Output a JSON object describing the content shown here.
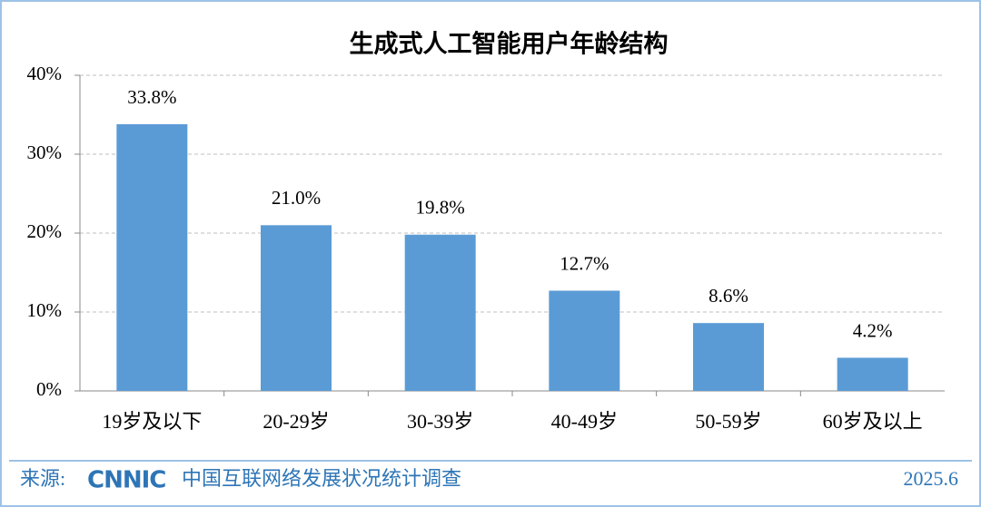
{
  "chart_data": {
    "type": "bar",
    "title": "生成式人工智能用户年龄结构",
    "categories": [
      "19岁及以下",
      "20-29岁",
      "30-39岁",
      "40-49岁",
      "50-59岁",
      "60岁及以上"
    ],
    "values": [
      33.8,
      21.0,
      19.8,
      12.7,
      8.6,
      4.2
    ],
    "value_labels": [
      "33.8%",
      "21.0%",
      "19.8%",
      "12.7%",
      "8.6%",
      "4.2%"
    ],
    "color": "#5b9bd5",
    "ylim": [
      0,
      40
    ],
    "yticks": [
      {
        "value": 0,
        "label": "0%"
      },
      {
        "value": 10,
        "label": "10%"
      },
      {
        "value": 20,
        "label": "20%"
      },
      {
        "value": 30,
        "label": "30%"
      },
      {
        "value": 40,
        "label": "40%"
      }
    ],
    "grid": true
  },
  "footer": {
    "source_label": "来源:",
    "logo": "CNNIC",
    "source": "中国互联网络发展状况统计调查",
    "date": "2025.6"
  }
}
